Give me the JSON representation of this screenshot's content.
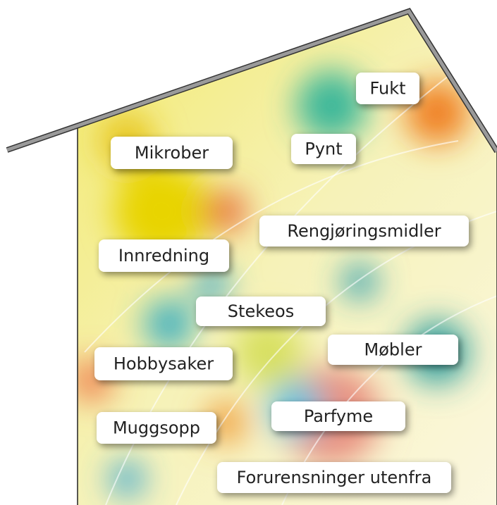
{
  "labels": [
    "Fukt",
    "Mikrober",
    "Pynt",
    "Rengjøringsmidler",
    "Innredning",
    "Stekeos",
    "Møbler",
    "Hobbysaker",
    "Parfyme",
    "Muggsopp",
    "Forurensninger utenfra"
  ]
}
